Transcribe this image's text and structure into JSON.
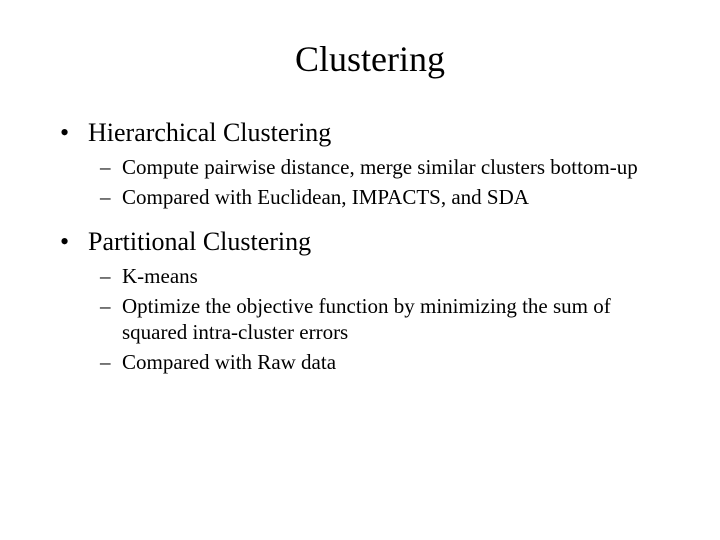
{
  "title": "Clustering",
  "sections": [
    {
      "heading": "Hierarchical Clustering",
      "items": [
        "Compute pairwise distance, merge similar clusters bottom-up",
        "Compared with Euclidean, IMPACTS, and SDA"
      ]
    },
    {
      "heading": "Partitional Clustering",
      "items": [
        "K-means",
        "Optimize the objective function by minimizing the sum of squared intra-cluster errors",
        "Compared with Raw data"
      ]
    }
  ],
  "bullet_glyph": "•",
  "dash_glyph": "–",
  "colors": {
    "background": "#ffffff",
    "text": "#000000"
  }
}
